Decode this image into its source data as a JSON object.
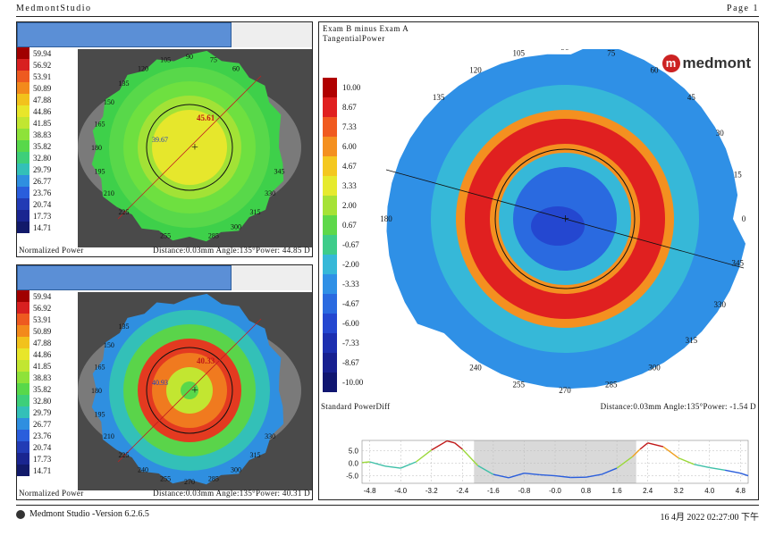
{
  "header": {
    "app": "MedmontStudio",
    "page": "Page 1"
  },
  "logo": {
    "text": "medmont"
  },
  "scale_labels": [
    "59.94",
    "56.92",
    "53.91",
    "50.89",
    "47.88",
    "44.86",
    "41.85",
    "38.83",
    "35.82",
    "32.80",
    "29.79",
    "26.77",
    "23.76",
    "20.74",
    "17.73",
    "14.71"
  ],
  "scale_colors": [
    "#a00000",
    "#d82020",
    "#ee5a20",
    "#f38a1c",
    "#f2c21c",
    "#e8e62a",
    "#c2e631",
    "#8ee239",
    "#58d84a",
    "#3dcf7a",
    "#33c0b8",
    "#2f8fe0",
    "#2a5edc",
    "#223bb5",
    "#1a2590",
    "#121a6a"
  ],
  "top_left": {
    "label1": "45.61",
    "label2": "39.67",
    "footer_left": "Normalized Power",
    "footer_right": "Distance:0.03mm Angle:135°Power: 44.85 D",
    "angles": [
      "105",
      "90",
      "75",
      "120",
      "60",
      "135",
      "150",
      "165",
      "180",
      "195",
      "210",
      "225",
      "255",
      "285",
      "300",
      "315",
      "330",
      "345"
    ]
  },
  "bottom_left": {
    "label1": "40.33",
    "label2": "40.93",
    "footer_left": "Normalized Power",
    "footer_right": "Distance:0.03mm Angle:135°Power: 40.31 D",
    "angles": [
      "135",
      "150",
      "165",
      "180",
      "195",
      "210",
      "225",
      "240",
      "255",
      "270",
      "285",
      "300",
      "315",
      "330"
    ]
  },
  "right": {
    "title1": "Exam B minus Exam A",
    "title2": "TangentialPower",
    "legend_labels": [
      "10.00",
      "8.67",
      "7.33",
      "6.00",
      "4.67",
      "3.33",
      "2.00",
      "0.67",
      "-0.67",
      "-2.00",
      "-3.33",
      "-4.67",
      "-6.00",
      "-7.33",
      "-8.67",
      "-10.00"
    ],
    "legend_colors": [
      "#b00000",
      "#e02020",
      "#f05a20",
      "#f49020",
      "#f4c820",
      "#e6ea2e",
      "#a6e236",
      "#5ed84a",
      "#3ecc8a",
      "#36b8d8",
      "#2f90e6",
      "#2a6ae0",
      "#2447d0",
      "#1c2fb0",
      "#172090",
      "#101670"
    ],
    "footer_left": "Standard PowerDiff",
    "footer_right": "Distance:0.03mm Angle:135°Power: -1.54 D",
    "angles": [
      "105",
      "90",
      "75",
      "120",
      "60",
      "135",
      "45",
      "30",
      "15",
      "0",
      "345",
      "330",
      "315",
      "300",
      "285",
      "270",
      "255",
      "240",
      "180"
    ]
  },
  "chart_data": {
    "type": "line",
    "x_ticks": [
      "-4.8",
      "-4.0",
      "-3.2",
      "-2.4",
      "-1.6",
      "-0.8",
      "-0.0",
      "0.8",
      "1.6",
      "2.4",
      "3.2",
      "4.0",
      "4.8"
    ],
    "y_ticks": [
      "5.0",
      "0.0",
      "-5.0"
    ],
    "xlim": [
      -5,
      5
    ],
    "ylim": [
      -8,
      9
    ],
    "x": [
      -5,
      -4.8,
      -4.4,
      -4.0,
      -3.6,
      -3.2,
      -2.8,
      -2.6,
      -2.4,
      -2.0,
      -1.6,
      -1.2,
      -0.8,
      -0.4,
      0,
      0.4,
      0.8,
      1.2,
      1.6,
      2.0,
      2.2,
      2.4,
      2.8,
      3.2,
      3.6,
      4.0,
      4.4,
      4.8,
      5
    ],
    "y": [
      0.2,
      0.5,
      -1.2,
      -2.0,
      0.5,
      5.2,
      8.8,
      8.0,
      5.5,
      -1.0,
      -4.5,
      -5.8,
      -4.0,
      -4.6,
      -5.0,
      -5.7,
      -5.6,
      -4.5,
      -2.0,
      2.5,
      5.5,
      8.0,
      6.5,
      2.0,
      -0.5,
      -1.8,
      -2.8,
      -4.0,
      -5.0
    ]
  },
  "status": {
    "left": "Medmont Studio -Version 6.2.6.5",
    "right": "16 4月 2022 02:27:00 下午"
  }
}
